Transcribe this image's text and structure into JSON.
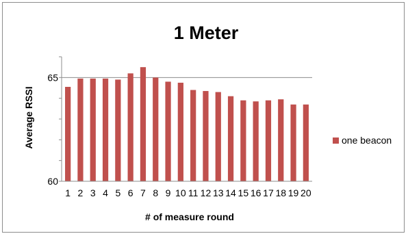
{
  "chart_data": {
    "type": "bar",
    "title": "1 Meter",
    "xlabel": "# of measure round",
    "ylabel": "Average RSSI",
    "categories": [
      "1",
      "2",
      "3",
      "4",
      "5",
      "6",
      "7",
      "8",
      "9",
      "10",
      "11",
      "12",
      "13",
      "14",
      "15",
      "16",
      "17",
      "18",
      "19",
      "20"
    ],
    "series": [
      {
        "name": "one beacon",
        "color": "#c0504d",
        "values": [
          64.55,
          64.95,
          64.95,
          64.95,
          64.9,
          65.2,
          65.5,
          65.0,
          64.8,
          64.75,
          64.4,
          64.35,
          64.3,
          64.1,
          63.9,
          63.85,
          63.9,
          63.95,
          63.7,
          63.7
        ]
      }
    ],
    "ylim": [
      60,
      66
    ],
    "yticks": [
      60,
      65
    ],
    "grid": true,
    "legend": "right"
  }
}
